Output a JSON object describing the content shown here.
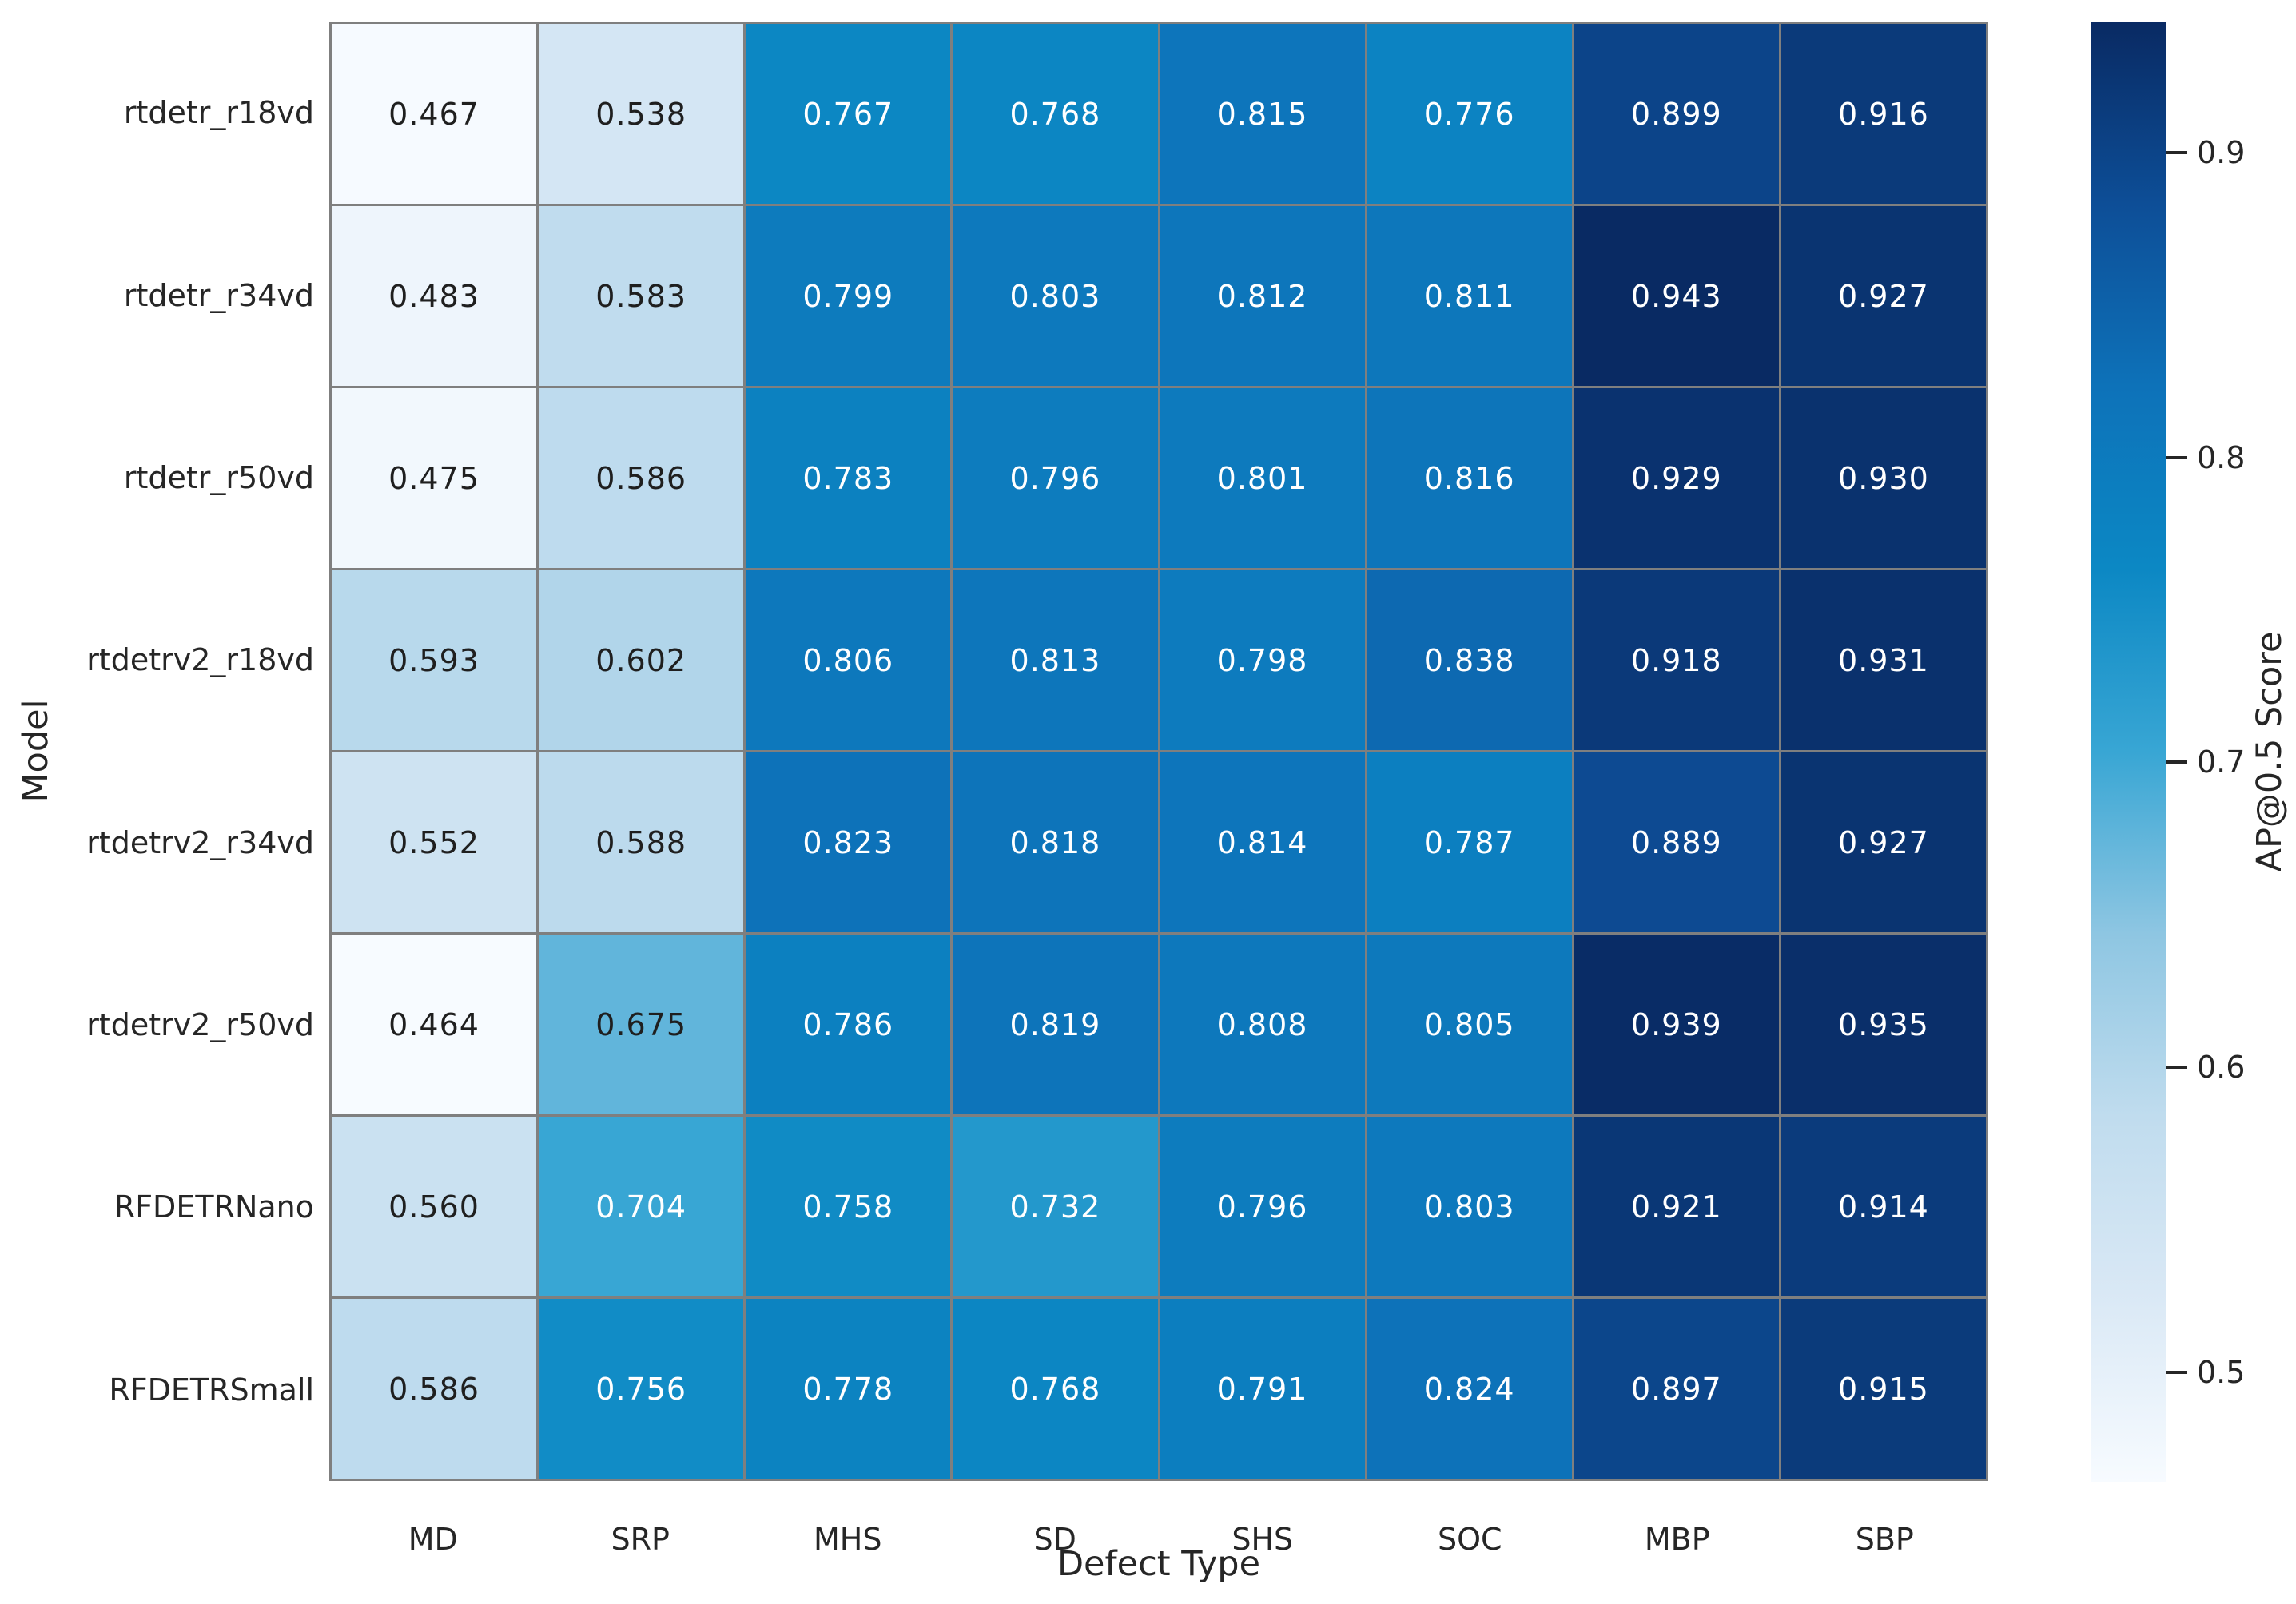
{
  "chart_data": {
    "type": "heatmap",
    "xlabel": "Defect Type",
    "ylabel": "Model",
    "x_categories": [
      "MD",
      "SRP",
      "MHS",
      "SD",
      "SHS",
      "SOC",
      "MBP",
      "SBP"
    ],
    "y_categories": [
      "rtdetr_r18vd",
      "rtdetr_r34vd",
      "rtdetr_r50vd",
      "rtdetrv2_r18vd",
      "rtdetrv2_r34vd",
      "rtdetrv2_r50vd",
      "RFDETRNano",
      "RFDETRSmall"
    ],
    "values": [
      [
        0.467,
        0.538,
        0.767,
        0.768,
        0.815,
        0.776,
        0.899,
        0.916
      ],
      [
        0.483,
        0.583,
        0.799,
        0.803,
        0.812,
        0.811,
        0.943,
        0.927
      ],
      [
        0.475,
        0.586,
        0.783,
        0.796,
        0.801,
        0.816,
        0.929,
        0.93
      ],
      [
        0.593,
        0.602,
        0.806,
        0.813,
        0.798,
        0.838,
        0.918,
        0.931
      ],
      [
        0.552,
        0.588,
        0.823,
        0.818,
        0.814,
        0.787,
        0.889,
        0.927
      ],
      [
        0.464,
        0.675,
        0.786,
        0.819,
        0.808,
        0.805,
        0.939,
        0.935
      ],
      [
        0.56,
        0.704,
        0.758,
        0.732,
        0.796,
        0.803,
        0.921,
        0.914
      ],
      [
        0.586,
        0.756,
        0.778,
        0.768,
        0.791,
        0.824,
        0.897,
        0.915
      ]
    ],
    "annotation_decimals": 3,
    "colorbar": {
      "label": "AP@0.5 Score",
      "tick_values": [
        0.5,
        0.6,
        0.7,
        0.8,
        0.9
      ],
      "vmin": 0.464,
      "vmax": 0.943
    },
    "colors": {
      "colormap_name": "Blues",
      "colormap_stops": [
        [
          0.0,
          "#f7fbff"
        ],
        [
          0.13,
          "#d9e8f5"
        ],
        [
          0.25,
          "#c0dcee"
        ],
        [
          0.375,
          "#8ec6e2"
        ],
        [
          0.5,
          "#38a6d4"
        ],
        [
          0.625,
          "#0c88c4"
        ],
        [
          0.75,
          "#0d72b9"
        ],
        [
          0.875,
          "#0d4e97"
        ],
        [
          1.0,
          "#092a63"
        ]
      ],
      "grid_line": "#7f7f7f",
      "annot_on_light": "#1f1f1f",
      "annot_on_dark": "#ffffff",
      "tick_text": "#262626"
    }
  }
}
